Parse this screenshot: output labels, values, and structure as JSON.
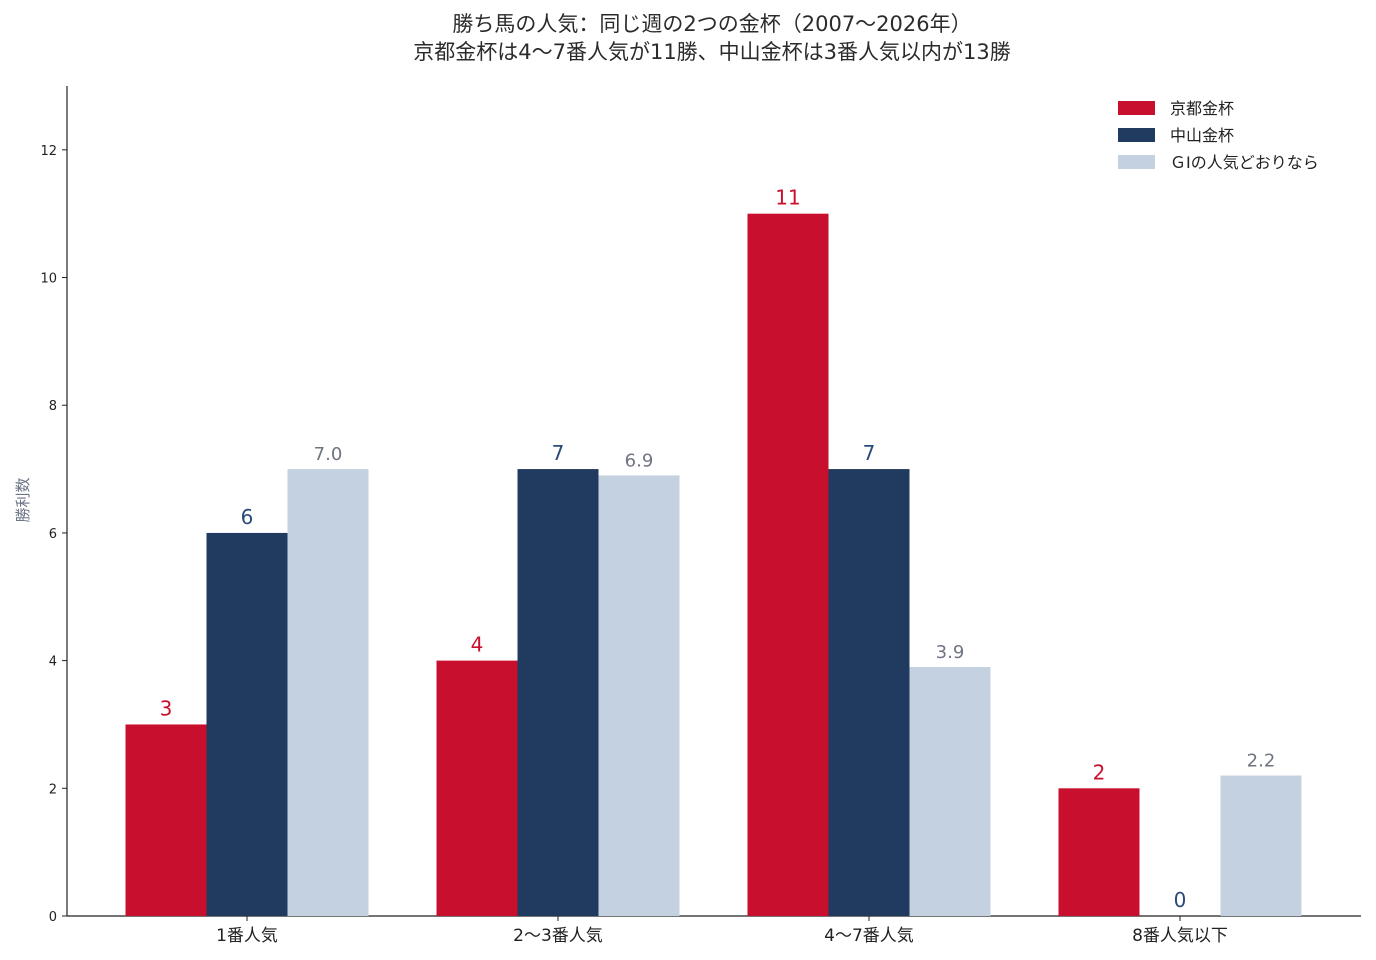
{
  "chart_data": {
    "type": "bar",
    "title": [
      "勝ち馬の人気：同じ週の2つの金杯（2007〜2026年）",
      "京都金杯は4〜7番人気が11勝、中山金杯は3番人気以内が13勝"
    ],
    "xlabel": "",
    "ylabel": "勝利数",
    "ylim": [
      0,
      13
    ],
    "yticks": [
      0,
      2,
      4,
      6,
      8,
      10,
      12
    ],
    "grid": false,
    "legend_position": "top-right",
    "categories": [
      "1番人気",
      "2〜3番人気",
      "4〜7番人気",
      "8番人気以下"
    ],
    "series": [
      {
        "name": "京都金杯",
        "color": "#c8102e",
        "label_color": "#c8102e",
        "values": [
          3,
          4,
          11,
          2
        ],
        "labels": [
          "3",
          "4",
          "11",
          "2"
        ]
      },
      {
        "name": "中山金杯",
        "color": "#213a5f",
        "label_color": "#2a4a7a",
        "values": [
          6,
          7,
          7,
          0
        ],
        "labels": [
          "6",
          "7",
          "7",
          "0"
        ]
      },
      {
        "name": "ＧⅠの人気どおりなら",
        "color": "#c4d1e0",
        "label_color": "#6e7480",
        "values": [
          7.0,
          6.9,
          3.9,
          2.2
        ],
        "labels": [
          "7.0",
          "6.9",
          "3.9",
          "2.2"
        ]
      }
    ]
  }
}
